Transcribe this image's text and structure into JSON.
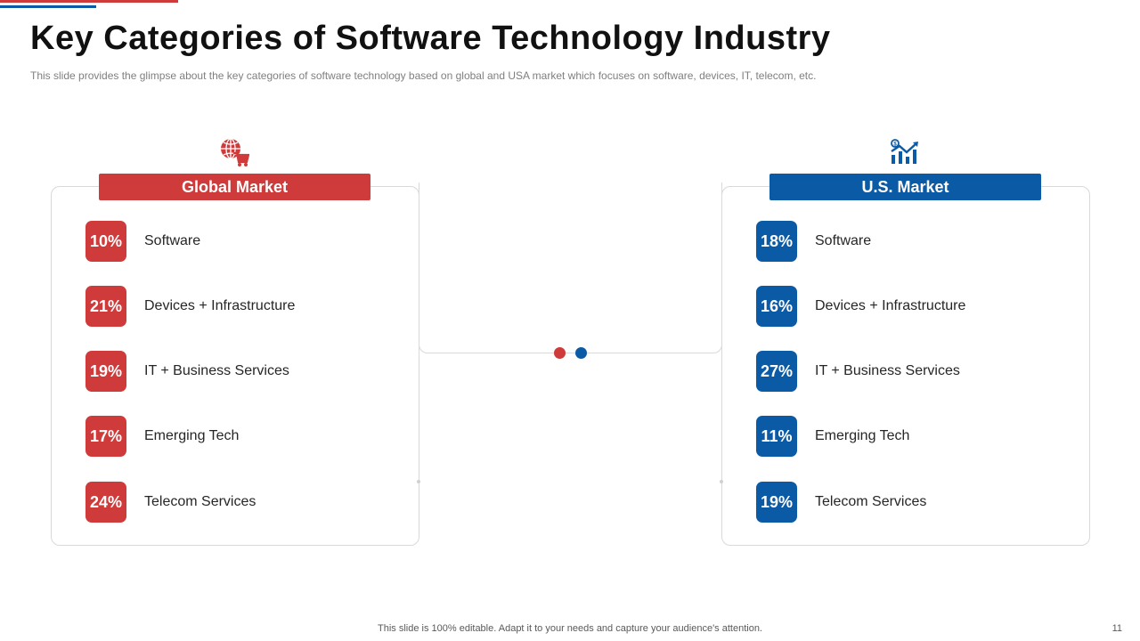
{
  "title": "Key Categories of Software Technology Industry",
  "subtitle": "This slide provides  the glimpse about the key categories of software technology based on global and USA market which focuses on software,  devices,  IT,  telecom, etc.",
  "colors": {
    "red": "#cf3a3a",
    "blue": "#0b5aa6"
  },
  "global": {
    "header": "Global Market",
    "icon": "globe-cart-icon",
    "items": [
      {
        "percent": "10%",
        "label": "Software"
      },
      {
        "percent": "21%",
        "label": "Devices + Infrastructure"
      },
      {
        "percent": "19%",
        "label": "IT  + Business Services"
      },
      {
        "percent": "17%",
        "label": "Emerging Tech"
      },
      {
        "percent": "24%",
        "label": "Telecom Services"
      }
    ]
  },
  "us": {
    "header": "U.S. Market",
    "icon": "growth-chart-icon",
    "items": [
      {
        "percent": "18%",
        "label": "Software"
      },
      {
        "percent": "16%",
        "label": "Devices + Infrastructure"
      },
      {
        "percent": "27%",
        "label": "IT  + Business Services"
      },
      {
        "percent": "11%",
        "label": "Emerging Tech"
      },
      {
        "percent": "19%",
        "label": "Telecom Services"
      }
    ]
  },
  "footer": "This slide is 100% editable. Adapt it to your needs and capture your audience's attention.",
  "page_number": "11"
}
